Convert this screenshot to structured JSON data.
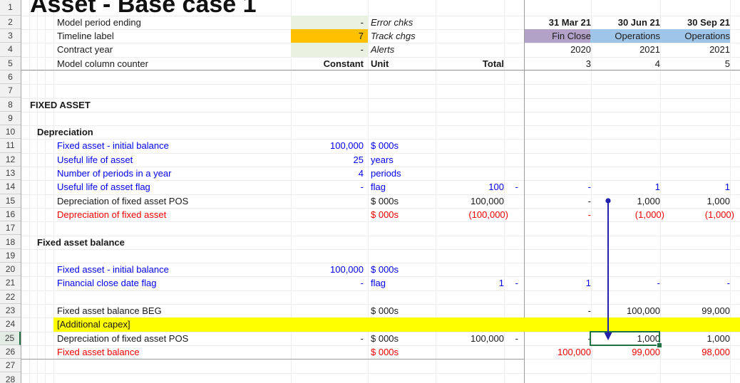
{
  "title": "Asset - Base case 1",
  "colors": {
    "ink": "#1a1a1a",
    "formula_blue": "#0000ee",
    "negative_red": "#f00000",
    "input_green": "#e9f2e0",
    "input_orange": "#ffc000",
    "fin_close_purple": "#b3a2c7",
    "operations_blue": "#9fc5e8",
    "capex_yellow": "#ffff00",
    "selection_green": "#217346",
    "arrow_navy": "#2222aa"
  },
  "periods": [
    {
      "date": "31 Mar 21",
      "phase": "Fin Close",
      "phase_color": "fin_close_purple",
      "year": "2020",
      "counter": "3"
    },
    {
      "date": "30 Jun 21",
      "phase": "Operations",
      "phase_color": "operations_blue",
      "year": "2021",
      "counter": "4"
    },
    {
      "date": "30 Sep 21",
      "phase": "Operations",
      "phase_color": "operations_blue",
      "year": "2021",
      "counter": "5"
    }
  ],
  "rows": [
    {
      "n": 2,
      "label": "Model period ending",
      "constant": "-",
      "constant_bg": "input_green",
      "unit": "Error chks",
      "unit_italic": true
    },
    {
      "n": 3,
      "label": "Timeline label",
      "constant": "7",
      "constant_bg": "input_orange",
      "unit": "Track chgs",
      "unit_italic": true
    },
    {
      "n": 4,
      "label": "Contract year",
      "constant": "-",
      "constant_bg": "input_green",
      "unit": "Alerts",
      "unit_italic": true
    },
    {
      "n": 5,
      "label": "Model column counter",
      "constant": "Constant",
      "unit": "Unit",
      "total": "Total",
      "header_bold": true
    },
    {
      "n": 8,
      "label": "FIXED ASSET",
      "indent": 0,
      "bold": true
    },
    {
      "n": 10,
      "label": "Depreciation",
      "indent": 1,
      "bold": true
    },
    {
      "n": 11,
      "label": "Fixed asset - initial balance",
      "color": "blue",
      "constant": "100,000",
      "unit": "$ 000s"
    },
    {
      "n": 12,
      "label": "Useful life of asset",
      "color": "blue",
      "constant": "25",
      "unit": "years"
    },
    {
      "n": 13,
      "label": "Number of periods in a year",
      "color": "blue",
      "constant": "4",
      "unit": "periods"
    },
    {
      "n": 14,
      "label": "Useful life of asset flag",
      "color": "blue",
      "constant": "-",
      "unit": "flag",
      "total": "100",
      "chk": "-",
      "values": [
        "-",
        "1",
        "1"
      ]
    },
    {
      "n": 15,
      "label": "Depreciation of fixed asset POS",
      "unit": "$ 000s",
      "total": "100,000",
      "values": [
        "-",
        "1,000",
        "1,000"
      ]
    },
    {
      "n": 16,
      "label": "Depreciation of fixed asset",
      "color": "red",
      "unit": "$ 000s",
      "total": "(100,000)",
      "values": [
        "-",
        "(1,000)",
        "(1,000)"
      ]
    },
    {
      "n": 18,
      "label": "Fixed asset balance",
      "indent": 1,
      "bold": true
    },
    {
      "n": 20,
      "label": "Fixed asset - initial balance",
      "color": "blue",
      "constant": "100,000",
      "unit": "$ 000s"
    },
    {
      "n": 21,
      "label": "Financial close date flag",
      "color": "blue",
      "constant": "-",
      "unit": "flag",
      "total": "1",
      "chk": "-",
      "values": [
        "1",
        "-",
        "-"
      ]
    },
    {
      "n": 23,
      "label": "Fixed asset balance BEG",
      "unit": "$ 000s",
      "values": [
        "-",
        "100,000",
        "99,000"
      ]
    },
    {
      "n": 24,
      "label": "[Additional capex]",
      "highlight": "capex_yellow"
    },
    {
      "n": 25,
      "label": "Depreciation of fixed asset POS",
      "constant": "-",
      "unit": "$ 000s",
      "total": "100,000",
      "chk": "-",
      "values": [
        "-",
        "1,000",
        "1,000"
      ]
    },
    {
      "n": 26,
      "label": "Fixed asset balance",
      "color": "red",
      "unit": "$ 000s",
      "values": [
        "100,000",
        "99,000",
        "98,000"
      ]
    }
  ],
  "row_numbers": [
    "1",
    "2",
    "3",
    "4",
    "5",
    "6",
    "7",
    "8",
    "9",
    "10",
    "11",
    "12",
    "13",
    "14",
    "15",
    "16",
    "17",
    "18",
    "19",
    "20",
    "21",
    "22",
    "23",
    "24",
    "25",
    "26",
    "27",
    "28"
  ],
  "selection": {
    "row": 25,
    "period_index": 1
  },
  "trace_arrow": {
    "from_row": 15,
    "to_row": 25,
    "period_index": 1
  }
}
